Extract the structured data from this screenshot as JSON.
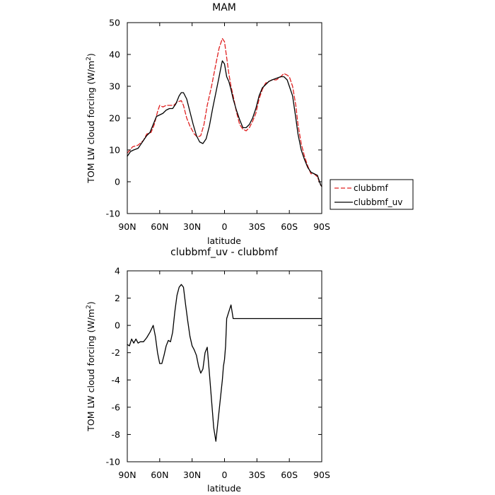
{
  "chart_data": [
    {
      "type": "line",
      "title": "MAM",
      "xlabel": "latitude",
      "ylabel": "TOM LW cloud forcing (W/m²)",
      "ylabel_main": "TOM LW cloud forcing (W/m",
      "ylabel_sup": "2",
      "ylabel_close": ")",
      "xlim": [
        90,
        -90
      ],
      "ylim": [
        -10,
        50
      ],
      "x_ticks": [
        90,
        60,
        30,
        0,
        -30,
        -60,
        -90
      ],
      "x_tick_labels": [
        "90N",
        "60N",
        "30N",
        "0",
        "30S",
        "60S",
        "90S"
      ],
      "y_ticks": [
        -10,
        0,
        10,
        20,
        30,
        40,
        50
      ],
      "y_tick_labels": [
        "-10",
        "0",
        "10",
        "20",
        "30",
        "40",
        "50"
      ],
      "grid": false,
      "legend_position": "right, outside the plot",
      "legend": [
        "clubbmf",
        "clubbmf_uv"
      ],
      "series": [
        {
          "name": "clubbmf",
          "color": "#e02020",
          "dash": "dashed",
          "x": [
            90,
            85,
            80,
            75,
            72,
            68,
            65,
            62,
            60,
            57,
            54,
            50,
            47,
            44,
            40,
            38,
            35,
            32,
            28,
            25,
            22,
            19,
            16,
            12,
            8,
            5,
            2,
            0,
            -2,
            -4,
            -6,
            -8,
            -11,
            -14,
            -17,
            -20,
            -23,
            -26,
            -29,
            -32,
            -35,
            -38,
            -41,
            -44,
            -48,
            -52,
            -55,
            -58,
            -60,
            -63,
            -66,
            -68,
            -71,
            -74,
            -77,
            -80,
            -83,
            -86,
            -89,
            -90
          ],
          "y": [
            9.0,
            11.0,
            11.5,
            13.0,
            15.0,
            15.5,
            18.0,
            22.0,
            24.0,
            23.5,
            24.0,
            24.0,
            24.0,
            25.0,
            25.5,
            24.0,
            20.0,
            17.5,
            15.0,
            14.0,
            14.5,
            18.0,
            24.0,
            30.0,
            37.0,
            42.0,
            45.0,
            44.0,
            39.0,
            34.0,
            30.0,
            27.0,
            22.0,
            18.0,
            16.5,
            16.0,
            17.0,
            19.0,
            21.5,
            26.0,
            29.0,
            31.0,
            31.5,
            32.0,
            32.0,
            33.0,
            34.0,
            33.5,
            33.0,
            30.0,
            24.0,
            18.0,
            12.0,
            8.0,
            5.0,
            2.5,
            2.5,
            1.5,
            -1.0,
            -1.5
          ]
        },
        {
          "name": "clubbmf_uv",
          "color": "#000000",
          "dash": "solid",
          "x": [
            90,
            87,
            84,
            80,
            76,
            72,
            69,
            66,
            63,
            60,
            57,
            54,
            51,
            48,
            45,
            42,
            40,
            38,
            35,
            32,
            29,
            26,
            23,
            20,
            17,
            14,
            11,
            8,
            5,
            3,
            2,
            0,
            -2,
            -4,
            -6,
            -8,
            -11,
            -14,
            -17,
            -20,
            -23,
            -26,
            -29,
            -32,
            -35,
            -38,
            -41,
            -44,
            -48,
            -52,
            -55,
            -58,
            -60,
            -63,
            -66,
            -68,
            -71,
            -74,
            -77,
            -80,
            -83,
            -86,
            -89,
            -90
          ],
          "y": [
            8.0,
            9.5,
            10.0,
            10.5,
            12.5,
            14.5,
            15.5,
            18.0,
            20.5,
            21.0,
            21.5,
            22.5,
            23.0,
            23.0,
            24.5,
            27.0,
            28.0,
            28.0,
            26.0,
            22.0,
            18.0,
            14.5,
            12.5,
            12.0,
            13.5,
            17.5,
            23.0,
            28.0,
            33.0,
            36.5,
            38.0,
            37.0,
            33.0,
            31.5,
            29.0,
            26.0,
            22.5,
            19.5,
            17.0,
            17.0,
            18.0,
            20.0,
            23.0,
            27.0,
            29.5,
            30.5,
            31.5,
            32.0,
            32.5,
            33.0,
            33.0,
            32.0,
            30.0,
            27.0,
            20.0,
            15.0,
            10.0,
            7.0,
            4.5,
            3.0,
            2.5,
            2.0,
            -1.0,
            -1.5
          ]
        }
      ]
    },
    {
      "type": "line",
      "title": "clubbmf_uv - clubbmf",
      "xlabel": "latitude",
      "ylabel": "TOM LW cloud forcing (W/m²)",
      "ylabel_main": "TOM LW cloud forcing (W/m",
      "ylabel_sup": "2",
      "ylabel_close": ")",
      "xlim": [
        90,
        -90
      ],
      "ylim": [
        -10,
        4
      ],
      "x_ticks": [
        90,
        60,
        30,
        0,
        -30,
        -60,
        -90
      ],
      "x_tick_labels": [
        "90N",
        "60N",
        "30N",
        "0",
        "30S",
        "60S",
        "90S"
      ],
      "y_ticks": [
        -10,
        -8,
        -6,
        -4,
        -2,
        0,
        2,
        4
      ],
      "y_tick_labels": [
        "-10",
        "-8",
        "-6",
        "-4",
        "-2",
        "0",
        "2",
        "4"
      ],
      "grid": false,
      "series": [
        {
          "color": "#000000",
          "dash": "solid",
          "x": [
            90,
            88,
            86,
            84,
            82,
            80,
            78,
            75,
            72,
            69,
            66,
            64,
            62,
            60,
            58,
            56,
            54,
            52,
            50,
            48,
            46,
            44,
            42,
            40,
            38,
            36,
            34,
            32,
            30,
            28,
            26,
            24,
            22,
            20,
            18,
            16,
            14,
            12,
            10,
            8,
            6,
            4,
            2,
            1,
            0,
            -1,
            -2,
            -4,
            -6,
            -8,
            -10,
            -12,
            -14,
            -16,
            -18,
            -20,
            -22,
            -24,
            -26,
            -28,
            -30,
            -32,
            -34,
            -36,
            -38,
            -40,
            -42,
            -44,
            -46,
            -48,
            -50,
            -52,
            -54,
            -56,
            -58,
            -60,
            -62,
            -64,
            -66,
            -68,
            -70,
            -72,
            -74,
            -76,
            -78,
            -80,
            -82,
            -84,
            -86,
            -88,
            -90
          ],
          "y": [
            -1.4,
            -1.5,
            -1.0,
            -1.3,
            -1.0,
            -1.3,
            -1.2,
            -1.2,
            -0.9,
            -0.5,
            0.0,
            -0.8,
            -2.0,
            -2.8,
            -2.8,
            -2.2,
            -1.5,
            -1.1,
            -1.2,
            -0.5,
            1.0,
            2.2,
            2.8,
            3.0,
            2.8,
            1.5,
            0.3,
            -0.8,
            -1.5,
            -1.8,
            -2.2,
            -3.0,
            -3.5,
            -3.2,
            -2.0,
            -1.6,
            -3.5,
            -5.5,
            -7.5,
            -8.5,
            -7.0,
            -5.5,
            -4.0,
            -3.0,
            -2.5,
            -1.5,
            0.5,
            1.0,
            1.5,
            0.5,
            0.5,
            0.5,
            0.5,
            0.5,
            0.5,
            0.5,
            0.5,
            0.5,
            0.5,
            0.5,
            0.5,
            0.5,
            0.5,
            0.5,
            0.5,
            0.5,
            0.5,
            0.5,
            0.5,
            0.5,
            0.5,
            0.5,
            0.5,
            0.5,
            0.5,
            0.5,
            0.5,
            0.5,
            0.5,
            0.5,
            0.5,
            0.5,
            0.5,
            0.5,
            0.5,
            0.5,
            0.5,
            0.5,
            0.5,
            0.5,
            0.5
          ]
        }
      ]
    }
  ]
}
